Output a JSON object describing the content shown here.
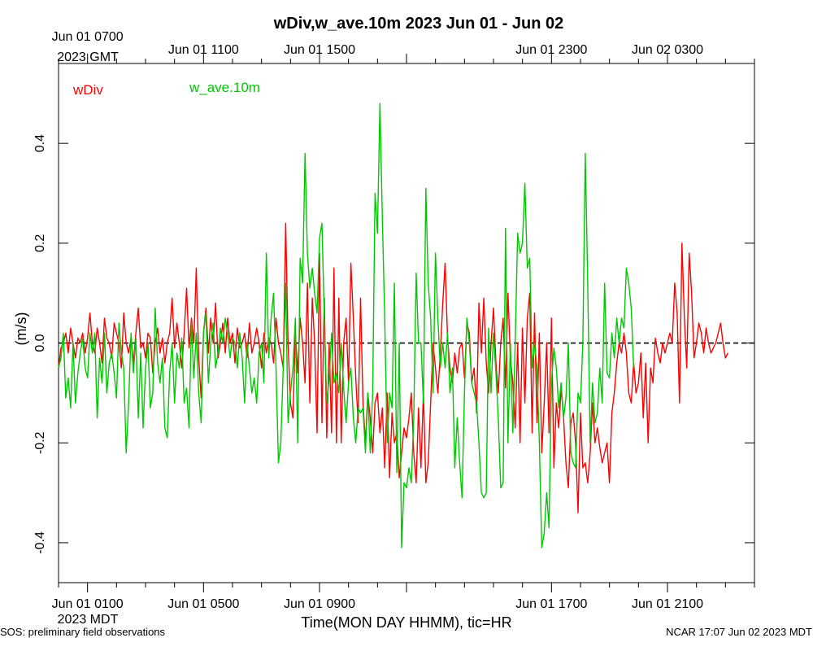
{
  "chart_data": {
    "type": "line",
    "title": "wDiv,w_ave.10m 2023 Jun 01 - Jun 02",
    "ylabel": "(m/s)",
    "xlabel": "Time(MON DAY HHMM), tic=HR",
    "ylim": [
      -0.48,
      0.56
    ],
    "xlim_hours_mdt": [
      0,
      24
    ],
    "zero_line": {
      "y": 0,
      "style": "dashed",
      "color": "#000000"
    },
    "y_ticks": [
      -0.4,
      -0.2,
      0.0,
      0.2,
      0.4
    ],
    "y_tick_labels": [
      "-0.4",
      "-0.2",
      "0.0",
      "0.2",
      "0.4"
    ],
    "bottom_ticks": [
      {
        "hour": 1,
        "label": "Jun 01 0100"
      },
      {
        "hour": 5,
        "label": "Jun 01 0500"
      },
      {
        "hour": 9,
        "label": "Jun 01 0900"
      },
      {
        "hour": 17,
        "label": "Jun 01 1700"
      },
      {
        "hour": 21,
        "label": "Jun 01 2100"
      }
    ],
    "bottom_zone": "2023 MDT",
    "top_ticks": [
      {
        "hour": 1,
        "label": "Jun 01 0700"
      },
      {
        "hour": 5,
        "label": "Jun 01 1100"
      },
      {
        "hour": 9,
        "label": "Jun 01 1500"
      },
      {
        "hour": 17,
        "label": "Jun 01 2300"
      },
      {
        "hour": 21,
        "label": "Jun 02 0300"
      }
    ],
    "top_zone": "2023 GMT",
    "series": [
      {
        "name": "wDiv",
        "color": "#ff0000",
        "x_start_hour": 0,
        "x_step_hour": 0.08333,
        "values": [
          -0.05,
          -0.01,
          0.0,
          0.02,
          -0.02,
          0.03,
          0.0,
          -0.03,
          0.01,
          0.0,
          0.02,
          -0.02,
          0.01,
          0.06,
          0.0,
          -0.02,
          0.03,
          0.0,
          -0.04,
          0.05,
          0.01,
          0.0,
          -0.03,
          0.04,
          0.02,
          0.0,
          -0.05,
          0.06,
          0.0,
          -0.02,
          0.01,
          -0.04,
          0.02,
          0.07,
          -0.01,
          0.0,
          -0.03,
          0.02,
          0.01,
          -0.06,
          0.0,
          0.03,
          -0.02,
          0.01,
          -0.04,
          0.0,
          0.02,
          0.09,
          -0.01,
          0.04,
          0.0,
          -0.05,
          0.02,
          0.11,
          -0.01,
          0.05,
          0.0,
          0.15,
          -0.03,
          -0.11,
          0.02,
          0.07,
          -0.02,
          0.05,
          0.0,
          0.08,
          -0.03,
          0.0,
          0.04,
          -0.02,
          0.05,
          0.0,
          0.02,
          -0.04,
          0.03,
          -0.01,
          0.0,
          0.02,
          -0.03,
          0.04,
          -0.02,
          0.0,
          0.03,
          0.0,
          -0.05,
          0.02,
          -0.02,
          0.01,
          0.0,
          -0.04,
          0.05,
          0.0,
          -0.02,
          -0.05,
          0.24,
          0.0,
          -0.12,
          -0.15,
          0.02,
          -0.06,
          0.05,
          0.0,
          -0.08,
          0.12,
          -0.12,
          0.09,
          0.0,
          -0.18,
          0.18,
          -0.16,
          0.09,
          -0.19,
          0.0,
          -0.18,
          0.15,
          -0.2,
          0.09,
          -0.2,
          0.0,
          0.05,
          -0.08,
          0.16,
          0.05,
          -0.07,
          -0.16,
          0.09,
          -0.12,
          -0.2,
          -0.1,
          -0.15,
          -0.22,
          -0.12,
          -0.1,
          -0.18,
          -0.13,
          -0.25,
          -0.1,
          -0.27,
          -0.14,
          -0.2,
          -0.18,
          -0.27,
          -0.22,
          -0.17,
          -0.19,
          -0.15,
          -0.1,
          -0.22,
          -0.28,
          -0.13,
          -0.25,
          -0.1,
          -0.28,
          -0.24,
          -0.12,
          0.0,
          -0.05,
          -0.1,
          -0.02,
          0.08,
          0.16,
          0.01,
          -0.05,
          -0.08,
          -0.02,
          -0.06,
          -0.01,
          0.0,
          -0.07,
          0.04,
          0.02,
          -0.08,
          -0.05,
          -0.14,
          0.08,
          -0.02,
          0.09,
          -0.04,
          -0.1,
          0.0,
          0.07,
          -0.04,
          -0.1,
          0.0,
          0.05,
          -0.09,
          0.1,
          -0.03,
          -0.08,
          -0.17,
          0.0,
          -0.2,
          0.03,
          -0.12,
          0.05,
          0.1,
          -0.18,
          0.06,
          -0.16,
          0.02,
          -0.22,
          -0.12,
          0.0,
          -0.18,
          0.05,
          -0.25,
          -0.12,
          -0.17,
          -0.09,
          -0.15,
          -0.24,
          -0.29,
          -0.16,
          -0.14,
          -0.2,
          -0.34,
          -0.14,
          -0.25,
          -0.24,
          -0.28,
          -0.22,
          -0.12,
          -0.2,
          -0.17,
          -0.21,
          -0.24,
          -0.22,
          -0.2,
          -0.28,
          -0.14,
          -0.1,
          -0.04,
          0.0,
          -0.02,
          0.02,
          -0.02,
          -0.1,
          -0.12,
          -0.04,
          -0.1,
          -0.08,
          -0.02,
          -0.15,
          -0.04,
          -0.2,
          -0.05,
          -0.08,
          0.01,
          -0.02,
          -0.04,
          0.0,
          -0.02,
          0.0,
          0.02,
          0.0,
          0.12,
          0.06,
          -0.12,
          0.2,
          0.05,
          -0.05,
          0.18,
          0.1,
          -0.03,
          0.0,
          0.04,
          0.02,
          -0.02,
          0.03,
          0.0,
          -0.02,
          -0.01,
          0.0,
          0.02,
          0.04,
          0.0,
          -0.03,
          -0.02
        ]
      },
      {
        "name": "w_ave.10m",
        "color": "#00c800",
        "x_start_hour": 0,
        "x_step_hour": 0.08333,
        "values": [
          -0.05,
          -0.03,
          0.02,
          -0.11,
          -0.07,
          -0.13,
          0.0,
          -0.12,
          -0.06,
          -0.02,
          0.01,
          -0.05,
          -0.07,
          0.02,
          -0.02,
          0.02,
          -0.15,
          -0.03,
          -0.08,
          0.02,
          -0.1,
          -0.04,
          -0.02,
          -0.06,
          -0.11,
          0.04,
          -0.02,
          -0.05,
          -0.22,
          -0.12,
          0.02,
          -0.06,
          0.01,
          -0.15,
          -0.02,
          -0.17,
          -0.05,
          0.0,
          -0.13,
          -0.1,
          0.07,
          -0.04,
          -0.08,
          -0.03,
          -0.17,
          -0.19,
          -0.06,
          0.0,
          -0.12,
          -0.02,
          -0.05,
          0.01,
          -0.12,
          -0.09,
          -0.17,
          0.04,
          -0.07,
          0.02,
          -0.1,
          -0.16,
          0.02,
          0.06,
          -0.08,
          0.0,
          0.04,
          -0.05,
          -0.02,
          0.03,
          0.0,
          0.05,
          0.02,
          -0.03,
          0.01,
          0.0,
          -0.05,
          0.02,
          -0.03,
          -0.12,
          0.0,
          -0.05,
          -0.1,
          -0.07,
          -0.12,
          -0.02,
          0.0,
          -0.08,
          0.18,
          -0.03,
          0.05,
          0.1,
          -0.05,
          -0.24,
          -0.2,
          -0.05,
          0.12,
          -0.16,
          -0.1,
          -0.05,
          0.05,
          -0.2,
          0.17,
          0.12,
          0.38,
          0.18,
          0.11,
          0.15,
          0.1,
          0.06,
          0.21,
          0.24,
          0.05,
          -0.12,
          -0.07,
          0.02,
          -0.08,
          -0.06,
          -0.1,
          0.0,
          -0.09,
          -0.16,
          -0.08,
          -0.05,
          -0.15,
          -0.2,
          -0.13,
          -0.14,
          -0.13,
          -0.22,
          -0.1,
          -0.22,
          -0.1,
          0.3,
          0.22,
          0.48,
          0.25,
          0.05,
          -0.2,
          -0.1,
          -0.13,
          0.12,
          -0.26,
          0.0,
          -0.41,
          -0.28,
          -0.29,
          -0.25,
          -0.28,
          -0.15,
          0.14,
          0.0,
          0.0,
          -0.12,
          0.31,
          0.12,
          0.05,
          -0.1,
          0.18,
          0.05,
          -0.05,
          0.0,
          -0.05,
          0.02,
          -0.1,
          -0.05,
          -0.25,
          -0.15,
          -0.24,
          -0.31,
          -0.1,
          0.05,
          0.0,
          -0.08,
          -0.1,
          -0.12,
          -0.2,
          -0.3,
          -0.31,
          -0.3,
          0.03,
          -0.1,
          0.02,
          -0.06,
          -0.15,
          -0.29,
          -0.28,
          0.23,
          -0.2,
          0.0,
          -0.18,
          0.0,
          0.22,
          0.18,
          0.2,
          0.32,
          0.15,
          0.17,
          -0.05,
          0.0,
          -0.05,
          -0.2,
          -0.41,
          -0.38,
          -0.3,
          -0.37,
          -0.08,
          -0.01,
          -0.05,
          -0.13,
          -0.08,
          -0.15,
          -0.11,
          0.0,
          -0.22,
          -0.24,
          -0.25,
          -0.1,
          -0.12,
          0.0,
          0.38,
          0.12,
          -0.2,
          -0.08,
          -0.16,
          -0.14,
          -0.05,
          -0.12,
          0.12,
          -0.06,
          -0.07,
          0.02,
          -0.03,
          0.05,
          0.0,
          0.05,
          0.03,
          0.15,
          0.12,
          0.07,
          -0.05
        ]
      }
    ],
    "legend": [
      {
        "label": "wDiv",
        "color": "#ff0000"
      },
      {
        "label": "w_ave.10m",
        "color": "#00c800"
      }
    ],
    "legend_position": "top-left"
  },
  "footer": {
    "left": "SOS: preliminary field observations",
    "right": "NCAR 17:07 Jun 02 2023 MDT"
  }
}
